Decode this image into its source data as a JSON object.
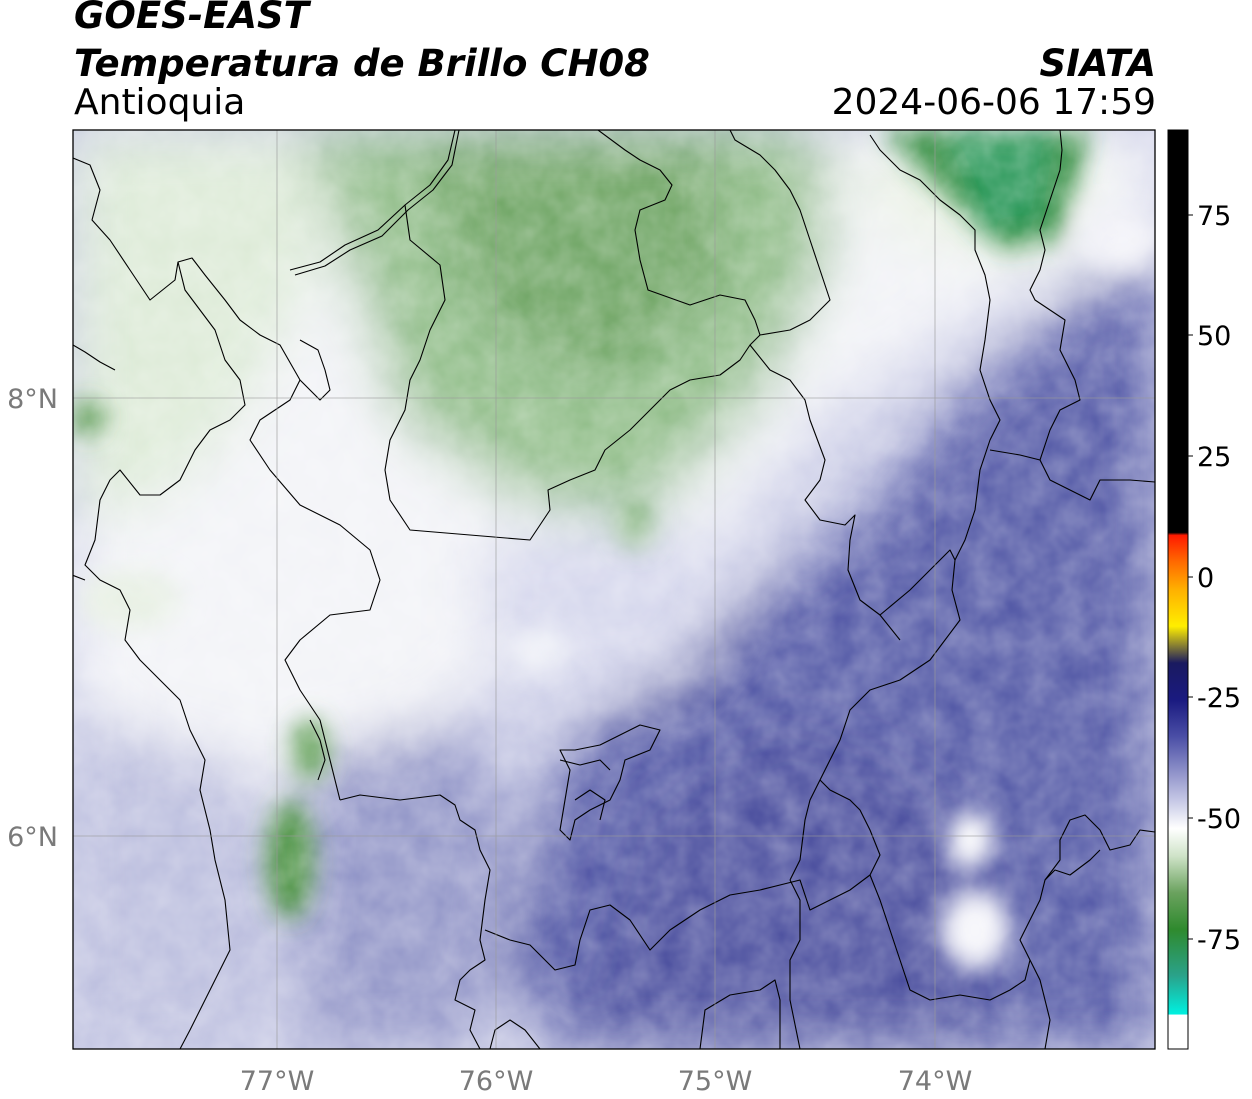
{
  "header": {
    "satellite": "GOES-EAST",
    "product": "Temperatura de Brillo CH08",
    "region": "Antioquia",
    "agency": "SIATA",
    "datetime": "2024-06-06 17:59"
  },
  "map": {
    "lon_ticks": [
      "77°W",
      "76°W",
      "75°W",
      "74°W"
    ],
    "lat_ticks": [
      "8°N",
      "6°N"
    ],
    "grid": true
  },
  "colorbar": {
    "ticks": [
      "75",
      "50",
      "25",
      "0",
      "-25",
      "-50",
      "-75"
    ],
    "colors": {
      "black": "#000000",
      "red": "#ff1a00",
      "orange": "#ff9900",
      "yellow": "#ffee00",
      "navy": "#1a1a80",
      "indigo": "#4a4ea6",
      "lavender": "#c7c9e6",
      "white": "#ffffff",
      "green": "#3a8c2e",
      "teal": "#1fc8a0",
      "cyan": "#00f5e6"
    }
  }
}
